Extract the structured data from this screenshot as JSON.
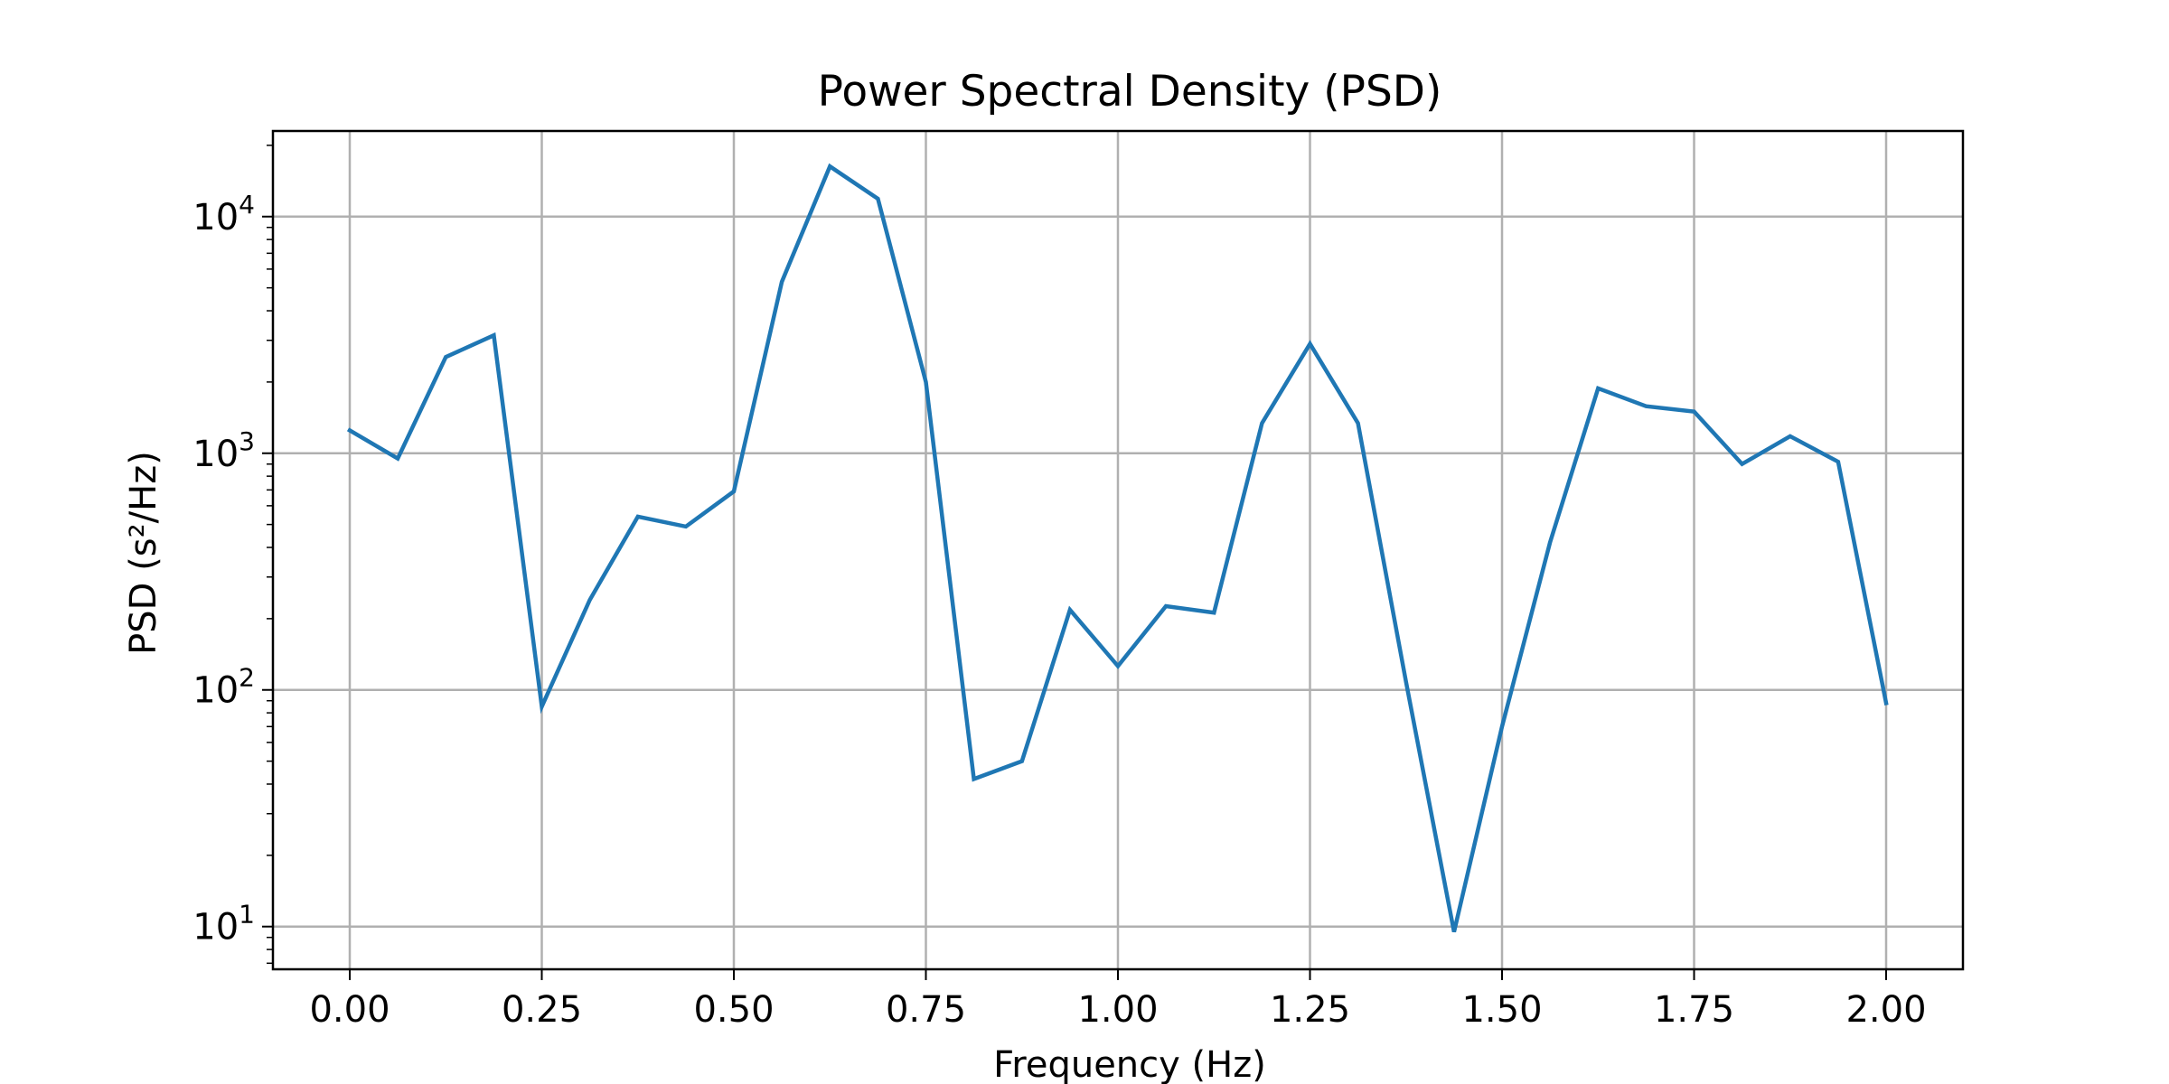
{
  "chart_data": {
    "type": "line",
    "title": "Power Spectral Density (PSD)",
    "xlabel": "Frequency (Hz)",
    "ylabel": "PSD (s²/Hz)",
    "xlim": [
      -0.1,
      2.1
    ],
    "ylim": [
      6.6,
      23000
    ],
    "yscale": "log",
    "grid": true,
    "color": "#1f77b4",
    "x_ticks": [
      "0.00",
      "0.25",
      "0.50",
      "0.75",
      "1.00",
      "1.25",
      "1.50",
      "1.75",
      "2.00"
    ],
    "y_ticks": [
      {
        "base": "10",
        "exp": "1",
        "value": 10
      },
      {
        "base": "10",
        "exp": "2",
        "value": 100
      },
      {
        "base": "10",
        "exp": "3",
        "value": 1000
      },
      {
        "base": "10",
        "exp": "4",
        "value": 10000
      }
    ],
    "series": [
      {
        "x": [
          0.0,
          0.0625,
          0.125,
          0.1875,
          0.25,
          0.3125,
          0.375,
          0.4375,
          0.5,
          0.5625,
          0.625,
          0.6875,
          0.75,
          0.8125,
          0.875,
          0.9375,
          1.0,
          1.0625,
          1.125,
          1.1875,
          1.25,
          1.3125,
          1.375,
          1.4375,
          1.5,
          1.5625,
          1.625,
          1.6875,
          1.75,
          1.8125,
          1.875,
          1.9375,
          2.0
        ],
        "y": [
          1250,
          950,
          2550,
          3150,
          85,
          240,
          540,
          490,
          690,
          5300,
          16300,
          11900,
          2000,
          42,
          50,
          218,
          126,
          226,
          212,
          1340,
          2900,
          1340,
          108,
          9.5,
          70,
          420,
          1880,
          1580,
          1500,
          900,
          1180,
          920,
          88
        ]
      }
    ]
  }
}
